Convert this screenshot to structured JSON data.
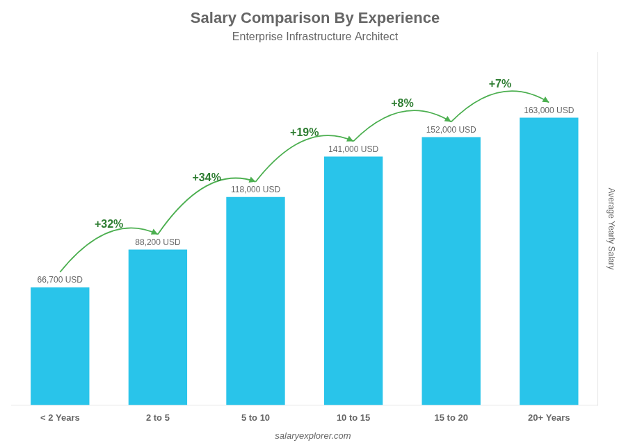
{
  "chart_data": {
    "type": "bar",
    "title": "Salary Comparison By Experience",
    "subtitle": "Enterprise Infrastructure Architect",
    "categories": [
      "< 2 Years",
      "2 to 5",
      "5 to 10",
      "10 to 15",
      "15 to 20",
      "20+ Years"
    ],
    "values": [
      66700,
      88200,
      118000,
      141000,
      152000,
      163000
    ],
    "value_labels": [
      "66,700 USD",
      "88,200 USD",
      "118,000 USD",
      "141,000 USD",
      "152,000 USD",
      "163,000 USD"
    ],
    "data_labels": true,
    "color": "#29c4ea",
    "ylabel": "Average Yearly Salary",
    "ylim": [
      0,
      200000
    ],
    "tick_labels": "x",
    "grid": false,
    "annotations": [
      {
        "text": "+32%",
        "from": "< 2 Years",
        "to": "2 to 5"
      },
      {
        "text": "+34%",
        "from": "2 to 5",
        "to": "5 to 10"
      },
      {
        "text": "+19%",
        "from": "5 to 10",
        "to": "10 to 15"
      },
      {
        "text": "+8%",
        "from": "10 to 15",
        "to": "15 to 20"
      },
      {
        "text": "+7%",
        "from": "15 to 20",
        "to": "20+ Years"
      }
    ],
    "watermark": "salaryexplorer.com"
  }
}
